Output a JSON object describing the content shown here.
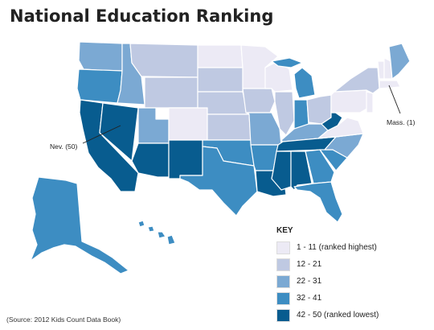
{
  "title": "National Education Ranking",
  "source": "(Source: 2012 Kids Count Data Book)",
  "callouts": {
    "nevada": "Nev. (50)",
    "massachusetts": "Mass. (1)"
  },
  "legend": {
    "title": "KEY",
    "items": [
      {
        "label": "1 - 11 (ranked highest)",
        "color": "#eceaf5"
      },
      {
        "label": "12 - 21",
        "color": "#bfc9e2"
      },
      {
        "label": "22 - 31",
        "color": "#7ba9d3"
      },
      {
        "label": "32 - 41",
        "color": "#3d8dc2"
      },
      {
        "label": "42 - 50 (ranked lowest)",
        "color": "#085c8f"
      }
    ]
  },
  "state_ranks": {
    "WA": "22 - 31",
    "OR": "32 - 41",
    "CA": "42 - 50 (ranked lowest)",
    "NV": "42 - 50 (ranked lowest)",
    "ID": "22 - 31",
    "MT": "12 - 21",
    "WY": "12 - 21",
    "UT": "22 - 31",
    "AZ": "42 - 50 (ranked lowest)",
    "CO": "1 - 11 (ranked highest)",
    "NM": "42 - 50 (ranked lowest)",
    "ND": "1 - 11 (ranked highest)",
    "SD": "12 - 21",
    "NE": "12 - 21",
    "KS": "12 - 21",
    "OK": "32 - 41",
    "TX": "32 - 41",
    "MN": "1 - 11 (ranked highest)",
    "IA": "12 - 21",
    "MO": "22 - 31",
    "AR": "32 - 41",
    "LA": "42 - 50 (ranked lowest)",
    "WI": "1 - 11 (ranked highest)",
    "IL": "12 - 21",
    "MI": "32 - 41",
    "IN": "32 - 41",
    "OH": "12 - 21",
    "KY": "22 - 31",
    "TN": "42 - 50 (ranked lowest)",
    "MS": "42 - 50 (ranked lowest)",
    "AL": "42 - 50 (ranked lowest)",
    "GA": "32 - 41",
    "FL": "32 - 41",
    "SC": "32 - 41",
    "NC": "22 - 31",
    "VA": "1 - 11 (ranked highest)",
    "WV": "42 - 50 (ranked lowest)",
    "PA": "1 - 11 (ranked highest)",
    "NY": "12 - 21",
    "ME": "22 - 31",
    "VT": "1 - 11 (ranked highest)",
    "NH": "1 - 11 (ranked highest)",
    "MA": "1 - 11 (ranked highest)",
    "NJ": "1 - 11 (ranked highest)",
    "AK": "32 - 41",
    "HI": "32 - 41"
  }
}
